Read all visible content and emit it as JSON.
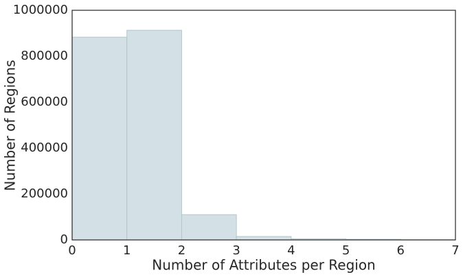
{
  "chart_data": {
    "type": "histogram",
    "xlabel": "Number of Attributes per Region",
    "ylabel": "Number of Regions",
    "bins": [
      0,
      1,
      2,
      3,
      4,
      5,
      6,
      7
    ],
    "values": [
      883000,
      913000,
      110000,
      15000,
      5000,
      3000,
      1000
    ],
    "color": "#d3e1e6",
    "xlim": [
      0,
      7
    ],
    "xticks": [
      0,
      1,
      2,
      3,
      4,
      5,
      6,
      7
    ],
    "ylim": [
      0,
      1000000
    ],
    "yticks": [
      0,
      200000,
      400000,
      600000,
      800000,
      1000000
    ],
    "grid": false
  }
}
